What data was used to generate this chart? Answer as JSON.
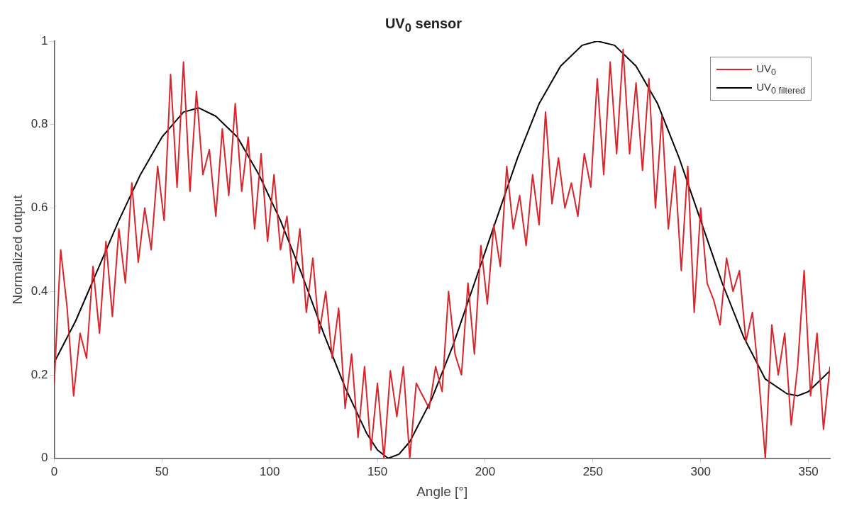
{
  "chart_data": {
    "type": "line",
    "title": "UV$_{0}$ sensor",
    "xlabel": "Angle [°]",
    "ylabel": "Normalized output",
    "xlim": [
      0,
      360
    ],
    "xticks": [
      0,
      50,
      100,
      150,
      200,
      250,
      300,
      350
    ],
    "ylim": [
      0,
      1
    ],
    "yticks": [
      0,
      0.2,
      0.4,
      0.6,
      0.8,
      1
    ],
    "grid": false,
    "legend": "top right",
    "marker": "none",
    "line_style": "solid",
    "series": [
      {
        "name": "UV$_{0}$",
        "color": "#d9252b",
        "x": [
          0,
          3,
          6,
          9,
          12,
          15,
          18,
          21,
          24,
          27,
          30,
          33,
          36,
          39,
          42,
          45,
          48,
          51,
          54,
          57,
          60,
          63,
          66,
          69,
          72,
          75,
          78,
          81,
          84,
          87,
          90,
          93,
          96,
          99,
          102,
          105,
          108,
          111,
          114,
          117,
          120,
          123,
          126,
          129,
          132,
          135,
          138,
          141,
          144,
          147,
          150,
          153,
          156,
          159,
          162,
          165,
          168,
          171,
          174,
          177,
          180,
          183,
          186,
          189,
          192,
          195,
          198,
          201,
          204,
          207,
          210,
          213,
          216,
          219,
          222,
          225,
          228,
          231,
          234,
          237,
          240,
          243,
          246,
          249,
          252,
          255,
          258,
          261,
          264,
          267,
          270,
          273,
          276,
          279,
          282,
          285,
          288,
          291,
          294,
          297,
          300,
          303,
          306,
          309,
          312,
          315,
          318,
          321,
          324,
          327,
          330,
          333,
          336,
          339,
          342,
          345,
          348,
          351,
          354,
          357,
          360
        ],
        "values": [
          0.18,
          0.5,
          0.36,
          0.15,
          0.3,
          0.24,
          0.46,
          0.3,
          0.52,
          0.34,
          0.55,
          0.42,
          0.66,
          0.47,
          0.6,
          0.5,
          0.7,
          0.57,
          0.92,
          0.65,
          0.95,
          0.64,
          0.88,
          0.68,
          0.74,
          0.58,
          0.79,
          0.63,
          0.85,
          0.64,
          0.77,
          0.55,
          0.73,
          0.52,
          0.68,
          0.5,
          0.58,
          0.42,
          0.55,
          0.35,
          0.48,
          0.3,
          0.4,
          0.24,
          0.36,
          0.12,
          0.25,
          0.05,
          0.22,
          0.02,
          0.18,
          0,
          0.21,
          0.1,
          0.22,
          0,
          0.18,
          0.15,
          0.12,
          0.22,
          0.16,
          0.4,
          0.25,
          0.2,
          0.42,
          0.25,
          0.51,
          0.37,
          0.56,
          0.46,
          0.7,
          0.55,
          0.63,
          0.51,
          0.68,
          0.56,
          0.83,
          0.61,
          0.72,
          0.6,
          0.66,
          0.58,
          0.73,
          0.65,
          0.91,
          0.68,
          0.95,
          0.73,
          0.98,
          0.73,
          0.9,
          0.69,
          0.91,
          0.6,
          0.82,
          0.55,
          0.7,
          0.45,
          0.7,
          0.35,
          0.6,
          0.42,
          0.38,
          0.32,
          0.48,
          0.4,
          0.45,
          0.28,
          0.35,
          0.19,
          0,
          0.32,
          0.2,
          0.3,
          0.08,
          0.22,
          0.45,
          0.15,
          0.3,
          0.07,
          0.22
        ]
      },
      {
        "name": "UV$_{0 filtered}$",
        "color": "#000000",
        "x": [
          0,
          10,
          20,
          30,
          40,
          50,
          60,
          67,
          75,
          85,
          95,
          105,
          115,
          125,
          135,
          145,
          150,
          155,
          160,
          165,
          175,
          185,
          195,
          205,
          215,
          225,
          235,
          245,
          252,
          260,
          270,
          280,
          290,
          300,
          310,
          320,
          330,
          340,
          345,
          350,
          360
        ],
        "values": [
          0.23,
          0.33,
          0.45,
          0.57,
          0.68,
          0.77,
          0.83,
          0.84,
          0.82,
          0.77,
          0.68,
          0.57,
          0.44,
          0.3,
          0.17,
          0.06,
          0.02,
          0,
          0.01,
          0.04,
          0.14,
          0.27,
          0.42,
          0.57,
          0.72,
          0.85,
          0.94,
          0.99,
          1,
          0.99,
          0.94,
          0.85,
          0.72,
          0.57,
          0.42,
          0.29,
          0.19,
          0.155,
          0.15,
          0.16,
          0.21
        ]
      }
    ]
  }
}
